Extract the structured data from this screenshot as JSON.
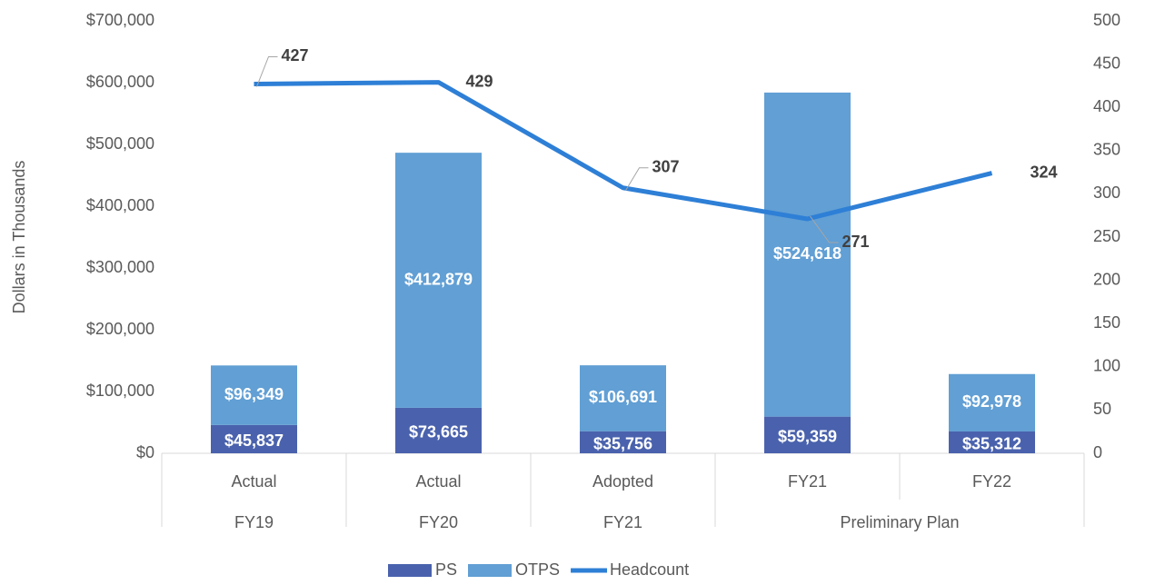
{
  "chart_data": {
    "type": "bar-line",
    "y_axis_label": "Dollars in Thousands",
    "categories": [
      "Actual",
      "Actual",
      "Adopted",
      "FY21",
      "FY22"
    ],
    "category_groups": [
      {
        "label": "FY19",
        "span": 1
      },
      {
        "label": "FY20",
        "span": 1
      },
      {
        "label": "FY21",
        "span": 1
      },
      {
        "label": "Preliminary Plan",
        "span": 2
      }
    ],
    "series": [
      {
        "name": "PS",
        "type": "bar",
        "color": "#4a62ad",
        "values": [
          45837,
          73665,
          35756,
          59359,
          35312
        ],
        "value_labels": [
          "$45,837",
          "$73,665",
          "$35,756",
          "$59,359",
          "$35,312"
        ]
      },
      {
        "name": "OTPS",
        "type": "bar",
        "color": "#619fd4",
        "values": [
          96349,
          412879,
          106691,
          524618,
          92978
        ],
        "value_labels": [
          "$96,349",
          "$412,879",
          "$106,691",
          "$524,618",
          "$92,978"
        ]
      },
      {
        "name": "Headcount",
        "type": "line",
        "axis": "y2",
        "color": "#2e7fd6",
        "values": [
          427,
          429,
          307,
          271,
          324
        ]
      }
    ],
    "stacked": true,
    "ylim": [
      0,
      700000
    ],
    "yticks": [
      {
        "value": 0,
        "label": "$0"
      },
      {
        "value": 100000,
        "label": "$100,000"
      },
      {
        "value": 200000,
        "label": "$200,000"
      },
      {
        "value": 300000,
        "label": "$300,000"
      },
      {
        "value": 400000,
        "label": "$400,000"
      },
      {
        "value": 500000,
        "label": "$500,000"
      },
      {
        "value": 600000,
        "label": "$600,000"
      },
      {
        "value": 700000,
        "label": "$700,000"
      }
    ],
    "y2lim": [
      0,
      500
    ],
    "y2ticks": [
      0,
      50,
      100,
      150,
      200,
      250,
      300,
      350,
      400,
      450,
      500
    ],
    "legend": "bottom"
  }
}
